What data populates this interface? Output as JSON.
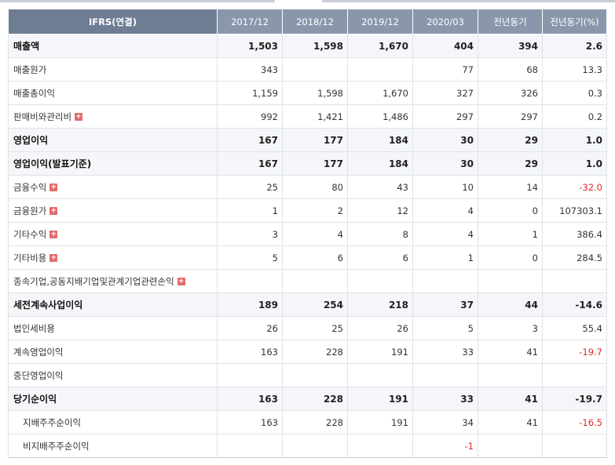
{
  "header": {
    "first": "IFRS(연결)",
    "cols": [
      "2017/12",
      "2018/12",
      "2019/12",
      "2020/03",
      "전년동기",
      "전년동기(%)"
    ]
  },
  "rows": [
    {
      "label": "매출액",
      "bold": true,
      "values": [
        "1,503",
        "1,598",
        "1,670",
        "404",
        "394",
        "2.6"
      ]
    },
    {
      "label": "매출원가",
      "values": [
        "343",
        "",
        "",
        "77",
        "68",
        "13.3"
      ]
    },
    {
      "label": "매출총이익",
      "values": [
        "1,159",
        "1,598",
        "1,670",
        "327",
        "326",
        "0.3"
      ]
    },
    {
      "label": "판매비와관리비",
      "plus": true,
      "values": [
        "992",
        "1,421",
        "1,486",
        "297",
        "297",
        "0.2"
      ]
    },
    {
      "label": "영업이익",
      "bold": true,
      "values": [
        "167",
        "177",
        "184",
        "30",
        "29",
        "1.0"
      ]
    },
    {
      "label": "영업이익(발표기준)",
      "bold": true,
      "values": [
        "167",
        "177",
        "184",
        "30",
        "29",
        "1.0"
      ]
    },
    {
      "label": "금융수익",
      "plus": true,
      "values": [
        "25",
        "80",
        "43",
        "10",
        "14",
        "-32.0"
      ]
    },
    {
      "label": "금융원가",
      "plus": true,
      "values": [
        "1",
        "2",
        "12",
        "4",
        "0",
        "107303.1"
      ]
    },
    {
      "label": "기타수익",
      "plus": true,
      "values": [
        "3",
        "4",
        "8",
        "4",
        "1",
        "386.4"
      ]
    },
    {
      "label": "기타비용",
      "plus": true,
      "values": [
        "5",
        "6",
        "6",
        "1",
        "0",
        "284.5"
      ]
    },
    {
      "label": "종속기업,공동지배기업및관계기업관련손익",
      "plus": true,
      "values": [
        "",
        "",
        "",
        "",
        "",
        ""
      ]
    },
    {
      "label": "세전계속사업이익",
      "bold": true,
      "values": [
        "189",
        "254",
        "218",
        "37",
        "44",
        "-14.6"
      ]
    },
    {
      "label": "법인세비용",
      "values": [
        "26",
        "25",
        "26",
        "5",
        "3",
        "55.4"
      ]
    },
    {
      "label": "계속영업이익",
      "values": [
        "163",
        "228",
        "191",
        "33",
        "41",
        "-19.7"
      ]
    },
    {
      "label": "중단영업이익",
      "values": [
        "",
        "",
        "",
        "",
        "",
        ""
      ]
    },
    {
      "label": "당기순이익",
      "bold": true,
      "values": [
        "163",
        "228",
        "191",
        "33",
        "41",
        "-19.7"
      ]
    },
    {
      "label": "지배주주순이익",
      "indent": true,
      "values": [
        "163",
        "228",
        "191",
        "34",
        "41",
        "-16.5"
      ]
    },
    {
      "label": "비지배주주순이익",
      "indent": true,
      "values": [
        "",
        "",
        "",
        "-1",
        "",
        ""
      ]
    }
  ]
}
